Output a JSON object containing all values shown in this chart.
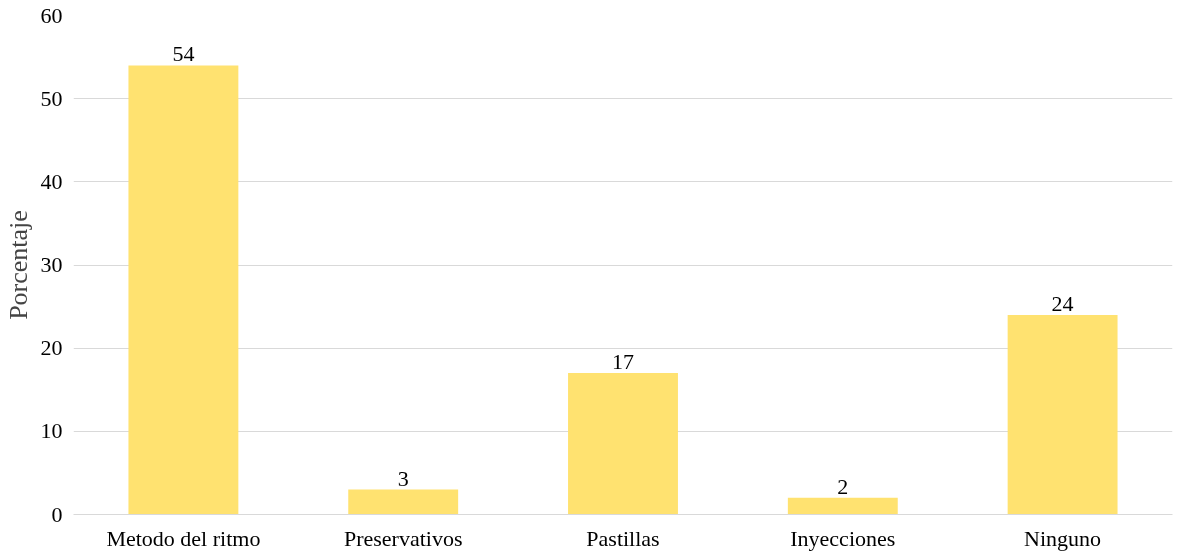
{
  "chart_data": {
    "type": "bar",
    "ylabel": "Porcentaje",
    "categories": [
      "Metodo del ritmo",
      "Preservativos",
      "Pastillas",
      "Inyecciones",
      "Ninguno"
    ],
    "values": [
      54,
      3,
      17,
      2,
      24
    ],
    "color": "#ffe270",
    "ylim": [
      0,
      60
    ],
    "yticks": [
      0,
      10,
      20,
      30,
      40,
      50,
      60
    ],
    "grid": "y",
    "data_labels": true
  }
}
